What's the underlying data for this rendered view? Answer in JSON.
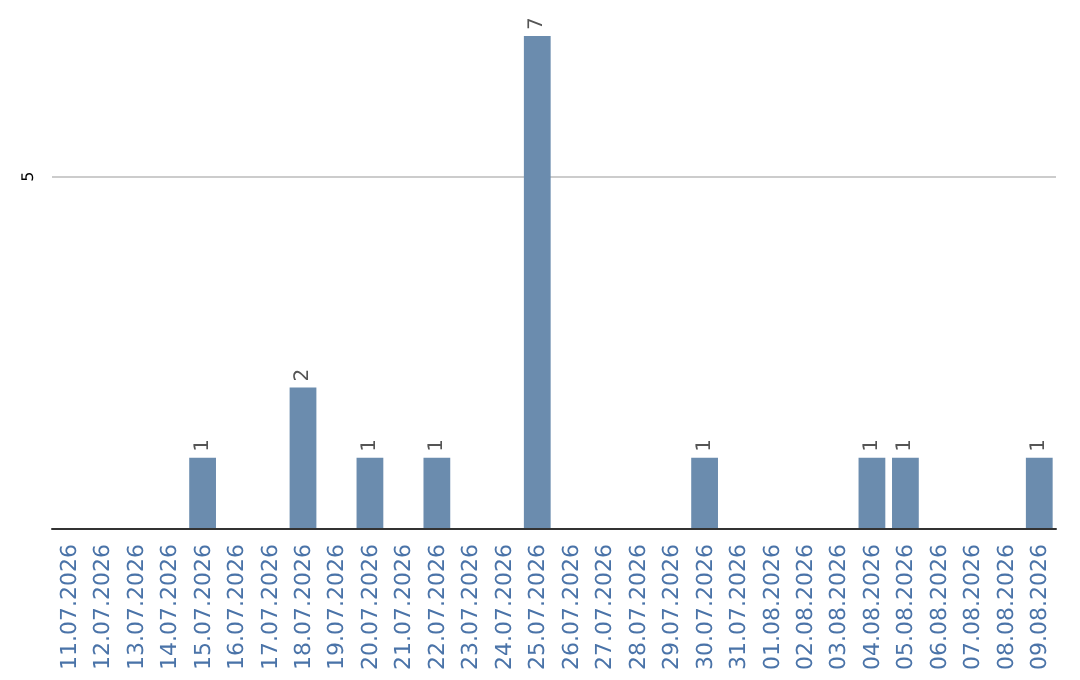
{
  "chart_data": {
    "type": "bar",
    "categories": [
      "11.07.2026",
      "12.07.2026",
      "13.07.2026",
      "14.07.2026",
      "15.07.2026",
      "16.07.2026",
      "17.07.2026",
      "18.07.2026",
      "19.07.2026",
      "20.07.2026",
      "21.07.2026",
      "22.07.2026",
      "23.07.2026",
      "24.07.2026",
      "25.07.2026",
      "26.07.2026",
      "27.07.2026",
      "28.07.2026",
      "29.07.2026",
      "30.07.2026",
      "31.07.2026",
      "01.08.2026",
      "02.08.2026",
      "03.08.2026",
      "04.08.2026",
      "05.08.2026",
      "06.08.2026",
      "07.08.2026",
      "08.08.2026",
      "09.08.2026"
    ],
    "values": [
      0,
      0,
      0,
      0,
      1,
      0,
      0,
      2,
      0,
      1,
      0,
      1,
      0,
      0,
      7,
      0,
      0,
      0,
      0,
      1,
      0,
      0,
      0,
      0,
      1,
      1,
      0,
      0,
      0,
      1
    ],
    "value_labels": [
      null,
      null,
      null,
      null,
      "1",
      null,
      null,
      "2",
      null,
      "1",
      null,
      "1",
      null,
      null,
      "7",
      null,
      null,
      null,
      null,
      "1",
      null,
      null,
      null,
      null,
      "1",
      "1",
      null,
      null,
      null,
      "1"
    ],
    "color": "#6b8cae",
    "ylim": [
      0,
      7
    ],
    "yticks": [
      5
    ],
    "grid": "y"
  }
}
